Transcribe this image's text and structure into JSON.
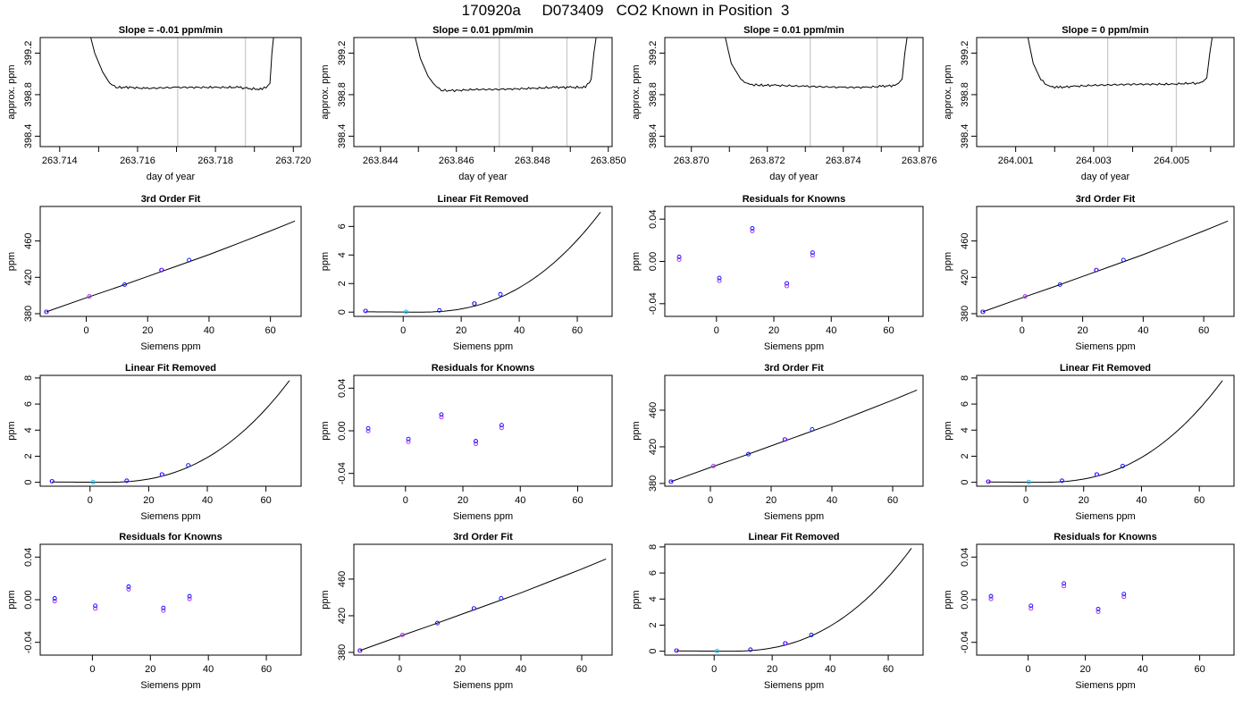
{
  "page_title": "170920a     D073409   CO2 Known in Position  3",
  "colors": {
    "axis": "#000000",
    "line": "#000000",
    "vline": "#c8c8c8",
    "point_blue": "#0000ff",
    "point_purple": "#a020f0",
    "point_cyan": "#00bfff",
    "point_red": "#ff0000"
  },
  "shared": {
    "xlabel_day": "day of year",
    "ylabel_approx": "approx. ppm",
    "xlabel_siemens": "Siemens ppm",
    "ylabel_ppm": "ppm",
    "title_fit": "3rd Order Fit",
    "title_lin": "Linear Fit Removed",
    "title_res": "Residuals for Knowns"
  },
  "chart_data": [
    {
      "type": "line",
      "title": "Slope =  -0.01  ppm/min",
      "xlabel": "day of year",
      "ylabel": "approx. ppm",
      "xlim": [
        263.7135,
        263.7202
      ],
      "ylim": [
        398.3,
        399.35
      ],
      "xticks": [
        263.714,
        263.716,
        263.718,
        263.72
      ],
      "xtick_labels": [
        "263.714",
        "263.716",
        "263.718",
        "263.720"
      ],
      "xminor": [
        263.715,
        263.717,
        263.719
      ],
      "yticks": [
        398.4,
        398.8,
        399.2
      ],
      "ytick_labels": [
        "398.4",
        "398.8",
        "399.2"
      ],
      "vlines": [
        263.71703,
        263.71877
      ],
      "x": [
        263.71473,
        263.7149,
        263.7151,
        263.7153,
        263.7155,
        263.7158,
        263.7162,
        263.717,
        263.718,
        263.7186,
        263.7188,
        263.7192,
        263.7194,
        263.71945,
        263.71952
      ],
      "y": [
        399.45,
        399.2,
        399.02,
        398.9,
        398.87,
        398.87,
        398.86,
        398.87,
        398.87,
        398.87,
        398.86,
        398.85,
        398.9,
        399.2,
        399.45
      ]
    },
    {
      "type": "line",
      "title": "Slope =  0.01  ppm/min",
      "xlabel": "day of year",
      "ylabel": "approx. ppm",
      "xlim": [
        263.8433,
        263.8501
      ],
      "ylim": [
        398.3,
        399.35
      ],
      "xticks": [
        263.844,
        263.846,
        263.848,
        263.85
      ],
      "xtick_labels": [
        "263.844",
        "263.846",
        "263.848",
        "263.850"
      ],
      "xminor": [
        263.845,
        263.847,
        263.849
      ],
      "yticks": [
        398.4,
        398.8,
        399.2
      ],
      "ytick_labels": [
        "398.4",
        "398.8",
        "399.2"
      ],
      "vlines": [
        263.84713,
        263.84891
      ],
      "x": [
        263.84485,
        263.84505,
        263.84525,
        263.84545,
        263.84565,
        263.846,
        263.8465,
        263.847,
        263.848,
        263.8486,
        263.849,
        263.8494,
        263.84955,
        263.84962,
        263.84972
      ],
      "y": [
        399.45,
        399.15,
        398.98,
        398.88,
        398.84,
        398.84,
        398.85,
        398.85,
        398.86,
        398.87,
        398.87,
        398.87,
        398.95,
        399.2,
        399.45
      ]
    },
    {
      "type": "line",
      "title": "Slope =  0.01  ppm/min",
      "xlabel": "day of year",
      "ylabel": "approx. ppm",
      "xlim": [
        263.8693,
        263.8761
      ],
      "ylim": [
        398.3,
        399.35
      ],
      "xticks": [
        263.87,
        263.872,
        263.874,
        263.876
      ],
      "xtick_labels": [
        "263.870",
        "263.872",
        "263.874",
        "263.876"
      ],
      "xminor": [
        263.871,
        263.873,
        263.875
      ],
      "yticks": [
        398.4,
        398.8,
        399.2
      ],
      "ytick_labels": [
        "398.4",
        "398.8",
        "399.2"
      ],
      "vlines": [
        263.87313,
        263.87489
      ],
      "x": [
        263.87083,
        263.87105,
        263.8713,
        263.8715,
        263.8718,
        263.8722,
        263.873,
        263.874,
        263.8746,
        263.875,
        263.8754,
        263.87555,
        263.87562,
        263.87572
      ],
      "y": [
        399.45,
        399.1,
        398.95,
        398.9,
        398.89,
        398.89,
        398.88,
        398.87,
        398.87,
        398.88,
        398.89,
        398.95,
        399.2,
        399.45
      ]
    },
    {
      "type": "line",
      "title": "Slope =  0  ppm/min",
      "xlabel": "day of year",
      "ylabel": "approx. ppm",
      "xlim": [
        264.0,
        264.0066
      ],
      "ylim": [
        398.3,
        399.35
      ],
      "xticks": [
        264.001,
        264.003,
        264.005
      ],
      "xtick_labels": [
        "264.001",
        "264.003",
        "264.005"
      ],
      "xminor": [
        264.002,
        264.004,
        264.006
      ],
      "yticks": [
        398.4,
        398.8,
        399.2
      ],
      "ytick_labels": [
        "398.4",
        "398.8",
        "399.2"
      ],
      "vlines": [
        264.00336,
        264.00512
      ],
      "x": [
        264.00126,
        264.00145,
        264.00165,
        264.00185,
        264.0021,
        264.0025,
        264.003,
        264.004,
        264.005,
        264.0055,
        264.00575,
        264.0059,
        264.00598,
        264.00608
      ],
      "y": [
        399.45,
        399.1,
        398.94,
        398.88,
        398.87,
        398.88,
        398.89,
        398.9,
        398.9,
        398.91,
        398.91,
        398.96,
        399.2,
        399.45
      ]
    },
    {
      "type": "scatter",
      "title": "3rd Order Fit",
      "xlabel": "Siemens ppm",
      "ylabel": "ppm",
      "xlim": [
        -15,
        70
      ],
      "ylim": [
        377,
        498
      ],
      "xticks": [
        0,
        20,
        40,
        60
      ],
      "yticks": [
        380,
        420,
        460
      ],
      "points": [
        {
          "x": -13,
          "y": 382
        },
        {
          "x": 1,
          "y": 399
        },
        {
          "x": 12.5,
          "y": 412
        },
        {
          "x": 24.5,
          "y": 428
        },
        {
          "x": 33.5,
          "y": 439
        }
      ],
      "curve": {
        "x": [
          -13,
          0,
          10,
          20,
          30,
          40,
          50,
          60,
          68
        ],
        "y": [
          382,
          397.5,
          409,
          421,
          433,
          445,
          458,
          471,
          482
        ]
      }
    },
    {
      "type": "scatter",
      "title": "Linear Fit Removed",
      "xlabel": "Siemens ppm",
      "ylabel": "ppm",
      "xlim": [
        -17,
        72
      ],
      "ylim": [
        -0.3,
        7.4
      ],
      "xticks": [
        0,
        20,
        40,
        60
      ],
      "yticks": [
        0,
        2,
        4,
        6
      ],
      "points": [
        {
          "x": -13,
          "y": 0.08
        },
        {
          "x": 1,
          "y": 0.02
        },
        {
          "x": 12.5,
          "y": 0.12
        },
        {
          "x": 24.5,
          "y": 0.6
        },
        {
          "x": 33.5,
          "y": 1.25
        }
      ],
      "curve_fn": "cubic",
      "curve_max": 7.0
    },
    {
      "type": "scatter",
      "title": "Residuals for Knowns",
      "xlabel": "Siemens ppm",
      "ylabel": "ppm",
      "xlim": [
        -18,
        72
      ],
      "ylim": [
        -0.052,
        0.052
      ],
      "xticks": [
        0,
        20,
        40,
        60
      ],
      "yticks": [
        -0.04,
        0.0,
        0.04
      ],
      "ytick_labels": [
        "-0.04",
        "0.00",
        "0.04"
      ],
      "points": [
        {
          "x": -13,
          "y": 0.003
        },
        {
          "x": 1,
          "y": -0.017
        },
        {
          "x": 12.5,
          "y": 0.03
        },
        {
          "x": 24.5,
          "y": -0.022
        },
        {
          "x": 33.5,
          "y": 0.007
        }
      ]
    },
    {
      "type": "scatter",
      "title": "3rd Order Fit",
      "xlabel": "Siemens ppm",
      "ylabel": "ppm",
      "xlim": [
        -15,
        70
      ],
      "ylim": [
        377,
        498
      ],
      "xticks": [
        0,
        20,
        40,
        60
      ],
      "yticks": [
        380,
        420,
        460
      ],
      "points": [
        {
          "x": -13,
          "y": 382
        },
        {
          "x": 1,
          "y": 399
        },
        {
          "x": 12.5,
          "y": 412
        },
        {
          "x": 24.5,
          "y": 428
        },
        {
          "x": 33.5,
          "y": 439
        }
      ],
      "curve": {
        "x": [
          -13,
          0,
          10,
          20,
          30,
          40,
          50,
          60,
          68
        ],
        "y": [
          382,
          397.5,
          409,
          421,
          433,
          445,
          458,
          471,
          482
        ]
      }
    },
    {
      "type": "scatter",
      "title": "Linear Fit Removed",
      "xlabel": "Siemens ppm",
      "ylabel": "ppm",
      "xlim": [
        -17,
        72
      ],
      "ylim": [
        -0.3,
        8.2
      ],
      "xticks": [
        0,
        20,
        40,
        60
      ],
      "yticks": [
        0,
        2,
        4,
        6,
        8
      ],
      "points": [
        {
          "x": -13,
          "y": 0.08
        },
        {
          "x": 1,
          "y": 0.02
        },
        {
          "x": 12.5,
          "y": 0.12
        },
        {
          "x": 24.5,
          "y": 0.6
        },
        {
          "x": 33.5,
          "y": 1.3
        }
      ],
      "curve_fn": "cubic",
      "curve_max": 7.8
    },
    {
      "type": "scatter",
      "title": "Residuals for Knowns",
      "xlabel": "Siemens ppm",
      "ylabel": "ppm",
      "xlim": [
        -18,
        72
      ],
      "ylim": [
        -0.052,
        0.052
      ],
      "xticks": [
        0,
        20,
        40,
        60
      ],
      "yticks": [
        -0.04,
        0.0,
        0.04
      ],
      "ytick_labels": [
        "-0.04",
        "0.00",
        "0.04"
      ],
      "points": [
        {
          "x": -13,
          "y": 0.001
        },
        {
          "x": 1,
          "y": -0.009
        },
        {
          "x": 12.5,
          "y": 0.014
        },
        {
          "x": 24.5,
          "y": -0.011
        },
        {
          "x": 33.5,
          "y": 0.004
        }
      ]
    },
    {
      "type": "scatter",
      "title": "3rd Order Fit",
      "xlabel": "Siemens ppm",
      "ylabel": "ppm",
      "xlim": [
        -15,
        70
      ],
      "ylim": [
        377,
        498
      ],
      "xticks": [
        0,
        20,
        40,
        60
      ],
      "yticks": [
        380,
        420,
        460
      ],
      "points": [
        {
          "x": -13,
          "y": 382
        },
        {
          "x": 1,
          "y": 399
        },
        {
          "x": 12.5,
          "y": 412
        },
        {
          "x": 24.5,
          "y": 428
        },
        {
          "x": 33.5,
          "y": 439
        }
      ],
      "curve": {
        "x": [
          -13,
          0,
          10,
          20,
          30,
          40,
          50,
          60,
          68
        ],
        "y": [
          382,
          397.5,
          409,
          421,
          433,
          445,
          458,
          471,
          482
        ]
      }
    },
    {
      "type": "scatter",
      "title": "Linear Fit Removed",
      "xlabel": "Siemens ppm",
      "ylabel": "ppm",
      "xlim": [
        -17,
        72
      ],
      "ylim": [
        -0.3,
        8.2
      ],
      "xticks": [
        0,
        20,
        40,
        60
      ],
      "yticks": [
        0,
        2,
        4,
        6,
        8
      ],
      "points": [
        {
          "x": -13,
          "y": 0.05
        },
        {
          "x": 1,
          "y": 0.02
        },
        {
          "x": 12.5,
          "y": 0.12
        },
        {
          "x": 24.5,
          "y": 0.6
        },
        {
          "x": 33.5,
          "y": 1.25
        }
      ],
      "curve_fn": "cubic",
      "curve_max": 7.8
    },
    {
      "type": "scatter",
      "title": "Residuals for Knowns",
      "xlabel": "Siemens ppm",
      "ylabel": "ppm",
      "xlim": [
        -18,
        72
      ],
      "ylim": [
        -0.052,
        0.052
      ],
      "xticks": [
        0,
        20,
        40,
        60
      ],
      "yticks": [
        -0.04,
        0.0,
        0.04
      ],
      "ytick_labels": [
        "-0.04",
        "0.00",
        "0.04"
      ],
      "points": [
        {
          "x": -13,
          "y": 0.0
        },
        {
          "x": 1,
          "y": -0.007
        },
        {
          "x": 12.5,
          "y": 0.011
        },
        {
          "x": 24.5,
          "y": -0.009
        },
        {
          "x": 33.5,
          "y": 0.002
        }
      ]
    },
    {
      "type": "scatter",
      "title": "3rd Order Fit",
      "xlabel": "Siemens ppm",
      "ylabel": "ppm",
      "xlim": [
        -15,
        70
      ],
      "ylim": [
        377,
        498
      ],
      "xticks": [
        0,
        20,
        40,
        60
      ],
      "yticks": [
        380,
        420,
        460
      ],
      "points": [
        {
          "x": -13,
          "y": 382
        },
        {
          "x": 1,
          "y": 399
        },
        {
          "x": 12.5,
          "y": 412
        },
        {
          "x": 24.5,
          "y": 428
        },
        {
          "x": 33.5,
          "y": 439
        }
      ],
      "curve": {
        "x": [
          -13,
          0,
          10,
          20,
          30,
          40,
          50,
          60,
          68
        ],
        "y": [
          382,
          397.5,
          409,
          421,
          433,
          445,
          458,
          471,
          482
        ]
      }
    },
    {
      "type": "scatter",
      "title": "Linear Fit Removed",
      "xlabel": "Siemens ppm",
      "ylabel": "ppm",
      "xlim": [
        -17,
        72
      ],
      "ylim": [
        -0.3,
        8.2
      ],
      "xticks": [
        0,
        20,
        40,
        60
      ],
      "yticks": [
        0,
        2,
        4,
        6,
        8
      ],
      "points": [
        {
          "x": -13,
          "y": 0.05
        },
        {
          "x": 1,
          "y": 0.02
        },
        {
          "x": 12.5,
          "y": 0.12
        },
        {
          "x": 24.5,
          "y": 0.6
        },
        {
          "x": 33.5,
          "y": 1.25
        }
      ],
      "curve_fn": "cubic",
      "curve_max": 7.9
    },
    {
      "type": "scatter",
      "title": "Residuals for Knowns",
      "xlabel": "Siemens ppm",
      "ylabel": "ppm",
      "xlim": [
        -18,
        72
      ],
      "ylim": [
        -0.052,
        0.052
      ],
      "xticks": [
        0,
        20,
        40,
        60
      ],
      "yticks": [
        -0.04,
        0.0,
        0.04
      ],
      "ytick_labels": [
        "-0.04",
        "0.00",
        "0.04"
      ],
      "points": [
        {
          "x": -13,
          "y": 0.002
        },
        {
          "x": 1,
          "y": -0.007
        },
        {
          "x": 12.5,
          "y": 0.014
        },
        {
          "x": 24.5,
          "y": -0.01
        },
        {
          "x": 33.5,
          "y": 0.004
        }
      ]
    }
  ]
}
